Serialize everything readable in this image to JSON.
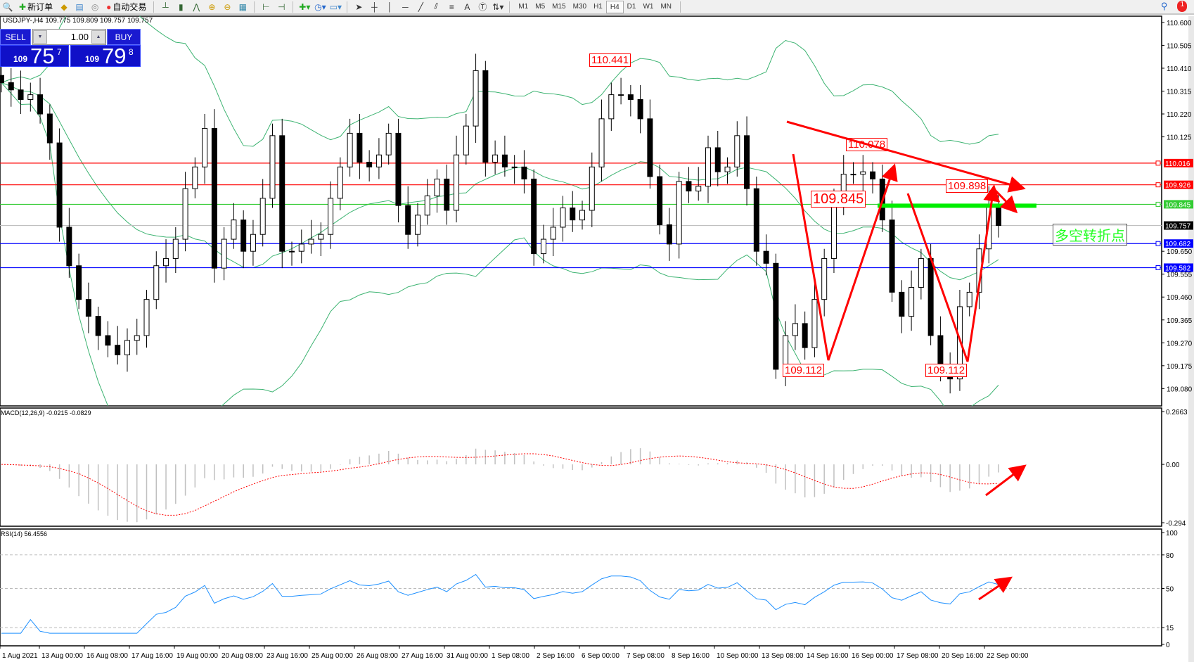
{
  "toolbar": {
    "new_order": "新订单",
    "auto_trading": "自动交易",
    "timeframes": [
      "M1",
      "M5",
      "M15",
      "M30",
      "H1",
      "H4",
      "D1",
      "W1",
      "MN"
    ],
    "selected_timeframe": "H4",
    "notification_count": "1"
  },
  "chart": {
    "title": "USDJPY-,H4  109.775 109.809 109.757 109.757",
    "symbol": "USDJPY-",
    "timeframe": "H4"
  },
  "trade_panel": {
    "sell_label": "SELL",
    "buy_label": "BUY",
    "lot": "1.00",
    "sell_price": {
      "prefix": "109",
      "big": "75",
      "sup": "7"
    },
    "buy_price": {
      "prefix": "109",
      "big": "79",
      "sup": "8"
    }
  },
  "price_axis": [
    "110.600",
    "110.505",
    "110.410",
    "110.315",
    "110.220",
    "110.125",
    "109.650",
    "109.555",
    "109.460",
    "109.365",
    "109.270",
    "109.175",
    "109.080"
  ],
  "levels": [
    {
      "price": "110.016",
      "color": "#ff0000"
    },
    {
      "price": "109.926",
      "color": "#ff0000"
    },
    {
      "price": "109.845",
      "color": "#33cc33"
    },
    {
      "price": "109.757",
      "color": "#000000",
      "line": "#c0c0c0"
    },
    {
      "price": "109.682",
      "color": "#0000ff"
    },
    {
      "price": "109.582",
      "color": "#0000ff"
    }
  ],
  "annotations": {
    "high_1": "110.441",
    "high_2": "110.078",
    "pivot": "109.845",
    "high_3": "109.898",
    "low_1": "109.112",
    "low_2": "109.112",
    "turning_point": "多空转折点"
  },
  "time_axis": [
    "1 Aug 2021",
    "13 Aug 00:00",
    "16 Aug 08:00",
    "17 Aug 16:00",
    "19 Aug 00:00",
    "20 Aug 08:00",
    "23 Aug 16:00",
    "25 Aug 00:00",
    "26 Aug 08:00",
    "27 Aug 16:00",
    "31 Aug 00:00",
    "1 Sep 08:00",
    "2 Sep 16:00",
    "6 Sep 00:00",
    "7 Sep 08:00",
    "8 Sep 16:00",
    "10 Sep 00:00",
    "13 Sep 08:00",
    "14 Sep 16:00",
    "16 Sep 00:00",
    "17 Sep 08:00",
    "20 Sep 16:00",
    "22 Sep 00:00"
  ],
  "macd": {
    "title": "MACD(12,26,9) -0.0215 -0.0829",
    "axis": [
      "0.2663",
      "0.00",
      "-0.294"
    ],
    "range": [
      -0.294,
      0.2663
    ]
  },
  "rsi": {
    "title": "RSI(14) 56.4556",
    "axis": [
      "100",
      "80",
      "50",
      "15",
      "0"
    ],
    "levels": [
      80,
      50,
      15
    ]
  },
  "chart_data": {
    "type": "candlestick",
    "price_range": [
      109.008,
      110.626
    ],
    "close": [
      110.35,
      110.32,
      110.28,
      110.3,
      110.22,
      110.1,
      109.75,
      109.59,
      109.45,
      109.38,
      109.3,
      109.26,
      109.22,
      109.28,
      109.3,
      109.45,
      109.59,
      109.62,
      109.7,
      109.91,
      110.0,
      110.16,
      109.58,
      109.7,
      109.78,
      109.65,
      109.72,
      109.87,
      110.13,
      109.65,
      109.65,
      109.68,
      109.7,
      109.72,
      109.87,
      110.0,
      110.14,
      110.02,
      110.0,
      110.05,
      110.14,
      109.84,
      109.72,
      109.8,
      109.88,
      109.95,
      109.82,
      110.05,
      110.17,
      110.4,
      110.02,
      110.05,
      110.0,
      110.0,
      109.95,
      109.64,
      109.7,
      109.75,
      109.83,
      109.78,
      109.82,
      110.0,
      110.2,
      110.3,
      110.3,
      110.28,
      110.2,
      109.96,
      109.76,
      109.68,
      109.94,
      109.9,
      109.92,
      110.08,
      109.98,
      110.0,
      110.13,
      109.91,
      109.65,
      109.6,
      109.16,
      109.3,
      109.35,
      109.25,
      109.45,
      109.62,
      109.85,
      109.97,
      109.97,
      109.98,
      109.95,
      109.78,
      109.48,
      109.38,
      109.5,
      109.62,
      109.3,
      109.18,
      109.12,
      109.42,
      109.48,
      109.66,
      109.84,
      109.757
    ],
    "colors": {
      "bollinger": "#3cb371",
      "macd_hist": "#c0c0c0",
      "macd_signal": "#ff0000",
      "rsi": "#1e90ff",
      "annotation": "#ff0000",
      "pivot_bar": "#00ee00"
    }
  }
}
